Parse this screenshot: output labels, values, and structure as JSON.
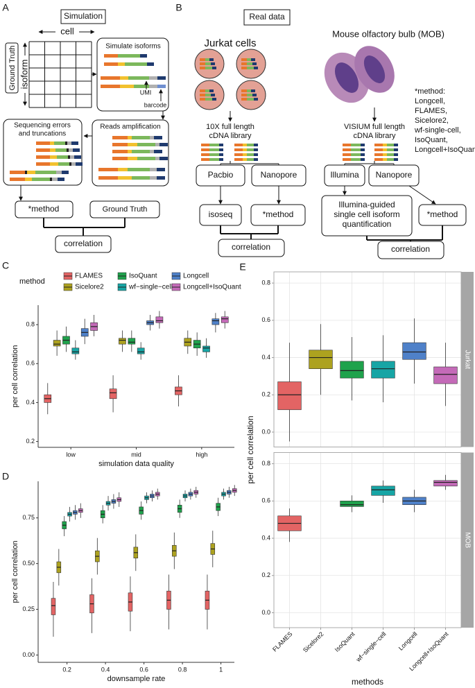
{
  "panel_a": {
    "letter": "A",
    "title": "Simulation",
    "cell": "cell",
    "ground_truth_box": "Ground Truth",
    "isoform": "isoform",
    "simulate": "Simulate isoforms",
    "umi": "UMI",
    "barcode": "barcode",
    "errors": [
      "Sequencing errors",
      "and truncations"
    ],
    "amplification": "Reads amplification",
    "method": "*method",
    "ground_truth": "Ground Truth",
    "correlation": "correlation"
  },
  "panel_b": {
    "letter": "B",
    "title": "Real data",
    "jurkat": "Jurkat cells",
    "mob": "Mouse olfactory bulb (MOB)",
    "library_10x": [
      "10X full length",
      "cDNA library"
    ],
    "library_visium": [
      "VISIUM full length",
      "cDNA library"
    ],
    "pacbio": "Pacbio",
    "nanopore_left": "Nanopore",
    "illumina": "Illumina",
    "nanopore_right": "Nanopore",
    "isoseq": "isoseq",
    "method_left": "*method",
    "illumina_guided": [
      "Illumina-guided",
      "single cell isoform",
      "quantification"
    ],
    "method_right": "*method",
    "correlation_left": "correlation",
    "correlation_right": "correlation",
    "method_note": [
      "*method:",
      "Longcell,",
      "FLAMES,",
      "Sicelore2,",
      "wf-single-cell,",
      "IsoQuant,",
      "Longcell+IsoQuant"
    ]
  },
  "chart_data": [
    {
      "type": "box",
      "panel": "C",
      "legend_title": "method",
      "xlabel": "simulation data quality",
      "ylabel": "per cell correlation",
      "categories": [
        "low",
        "mid",
        "high"
      ],
      "ylim": [
        0.17,
        0.9
      ],
      "yticks": [
        0.2,
        0.4,
        0.6,
        0.8
      ],
      "grid": false,
      "series": [
        {
          "name": "FLAMES",
          "color": "#e36464",
          "values": [
            [
              0.34,
              0.4,
              0.42,
              0.44,
              0.5
            ],
            [
              0.35,
              0.42,
              0.45,
              0.47,
              0.54
            ],
            [
              0.38,
              0.44,
              0.46,
              0.48,
              0.54
            ]
          ]
        },
        {
          "name": "Sicelore2",
          "color": "#ada21f",
          "values": [
            [
              0.64,
              0.69,
              0.7,
              0.72,
              0.77
            ],
            [
              0.66,
              0.7,
              0.72,
              0.73,
              0.77
            ],
            [
              0.65,
              0.69,
              0.71,
              0.73,
              0.77
            ]
          ]
        },
        {
          "name": "IsoQuant",
          "color": "#1fa24c",
          "values": [
            [
              0.66,
              0.7,
              0.72,
              0.74,
              0.79
            ],
            [
              0.66,
              0.7,
              0.71,
              0.73,
              0.77
            ],
            [
              0.64,
              0.68,
              0.7,
              0.72,
              0.76
            ]
          ]
        },
        {
          "name": "wf−single−cell",
          "color": "#17a5a5",
          "values": [
            [
              0.62,
              0.65,
              0.66,
              0.68,
              0.72
            ],
            [
              0.62,
              0.65,
              0.66,
              0.68,
              0.71
            ],
            [
              0.63,
              0.66,
              0.68,
              0.69,
              0.73
            ]
          ]
        },
        {
          "name": "Longcell",
          "color": "#4f81c9",
          "values": [
            [
              0.7,
              0.74,
              0.76,
              0.78,
              0.83
            ],
            [
              0.77,
              0.8,
              0.81,
              0.82,
              0.85
            ],
            [
              0.76,
              0.8,
              0.82,
              0.83,
              0.86
            ]
          ]
        },
        {
          "name": "Longcell+IsoQuant",
          "color": "#c46ab8",
          "values": [
            [
              0.74,
              0.77,
              0.79,
              0.81,
              0.85
            ],
            [
              0.78,
              0.81,
              0.82,
              0.84,
              0.87
            ],
            [
              0.78,
              0.81,
              0.83,
              0.84,
              0.87
            ]
          ]
        }
      ]
    },
    {
      "type": "box",
      "panel": "D",
      "xlabel": "downsample rate",
      "ylabel": "per cell correlation",
      "x": [
        0.2,
        0.4,
        0.6,
        0.8,
        1
      ],
      "xlim": [
        0.05,
        1.07
      ],
      "xticks": [
        0.2,
        0.4,
        0.6,
        0.8,
        1
      ],
      "ylim": [
        -0.04,
        0.95
      ],
      "yticks": [
        {
          "value": 0,
          "label": "0.00"
        },
        {
          "value": 0.25,
          "label": "0.25"
        },
        {
          "value": 0.5,
          "label": "0.50"
        },
        {
          "value": 0.75,
          "label": "0.75"
        }
      ],
      "grid": false,
      "series": [
        {
          "color": "#e36464",
          "values": [
            [
              0.1,
              0.22,
              0.27,
              0.31,
              0.4
            ],
            [
              0.12,
              0.23,
              0.28,
              0.33,
              0.42
            ],
            [
              0.13,
              0.24,
              0.29,
              0.34,
              0.43
            ],
            [
              0.14,
              0.25,
              0.3,
              0.35,
              0.44
            ],
            [
              0.14,
              0.25,
              0.3,
              0.35,
              0.44
            ]
          ]
        },
        {
          "color": "#ada21f",
          "values": [
            [
              0.38,
              0.45,
              0.48,
              0.51,
              0.58
            ],
            [
              0.44,
              0.51,
              0.54,
              0.57,
              0.64
            ],
            [
              0.46,
              0.53,
              0.56,
              0.59,
              0.66
            ],
            [
              0.47,
              0.54,
              0.57,
              0.6,
              0.67
            ],
            [
              0.48,
              0.55,
              0.58,
              0.61,
              0.68
            ]
          ]
        },
        {
          "color": "#1fa24c",
          "values": [
            [
              0.65,
              0.69,
              0.71,
              0.73,
              0.76
            ],
            [
              0.72,
              0.75,
              0.77,
              0.79,
              0.82
            ],
            [
              0.74,
              0.77,
              0.79,
              0.81,
              0.84
            ],
            [
              0.75,
              0.78,
              0.8,
              0.82,
              0.85
            ],
            [
              0.76,
              0.79,
              0.81,
              0.83,
              0.86
            ]
          ]
        },
        {
          "color": "#17a5a5",
          "values": [
            [
              0.73,
              0.76,
              0.77,
              0.78,
              0.81
            ],
            [
              0.79,
              0.82,
              0.83,
              0.84,
              0.87
            ],
            [
              0.83,
              0.85,
              0.86,
              0.87,
              0.89
            ],
            [
              0.84,
              0.86,
              0.87,
              0.88,
              0.9
            ],
            [
              0.85,
              0.87,
              0.88,
              0.89,
              0.91
            ]
          ]
        },
        {
          "color": "#4f81c9",
          "values": [
            [
              0.74,
              0.77,
              0.78,
              0.79,
              0.82
            ],
            [
              0.8,
              0.83,
              0.84,
              0.85,
              0.88
            ],
            [
              0.84,
              0.86,
              0.87,
              0.88,
              0.9
            ],
            [
              0.85,
              0.87,
              0.88,
              0.89,
              0.91
            ],
            [
              0.86,
              0.88,
              0.89,
              0.9,
              0.92
            ]
          ]
        },
        {
          "color": "#c46ab8",
          "values": [
            [
              0.75,
              0.78,
              0.79,
              0.8,
              0.83
            ],
            [
              0.81,
              0.84,
              0.85,
              0.86,
              0.89
            ],
            [
              0.85,
              0.87,
              0.88,
              0.89,
              0.91
            ],
            [
              0.86,
              0.88,
              0.89,
              0.9,
              0.92
            ],
            [
              0.87,
              0.89,
              0.9,
              0.91,
              0.93
            ]
          ]
        }
      ]
    },
    {
      "type": "box_facet",
      "panel": "E",
      "xlabel": "methods",
      "ylabel": "per cell correlation",
      "categories": [
        "FLAMES",
        "Sicelore2",
        "IsoQuant",
        "wf−single−cell",
        "Longcell",
        "Longcell+IsoQuant"
      ],
      "colors": [
        "#e36464",
        "#ada21f",
        "#1fa24c",
        "#17a5a5",
        "#4f81c9",
        "#c46ab8"
      ],
      "ylim": [
        -0.08,
        0.86
      ],
      "yticks": [
        {
          "value": 0,
          "label": "0.0"
        },
        0.2,
        0.4,
        0.6,
        0.8
      ],
      "grid": true,
      "facets": [
        {
          "name": "Jurkat",
          "values": [
            [
              -0.05,
              0.12,
              0.2,
              0.27,
              0.48
            ],
            [
              0.2,
              0.34,
              0.4,
              0.44,
              0.58
            ],
            [
              0.17,
              0.29,
              0.33,
              0.38,
              0.51
            ],
            [
              0.16,
              0.29,
              0.34,
              0.38,
              0.52
            ],
            [
              0.26,
              0.39,
              0.43,
              0.48,
              0.61
            ],
            [
              0.14,
              0.26,
              0.31,
              0.35,
              0.48
            ]
          ]
        },
        {
          "name": "MOB",
          "values": [
            [
              0.38,
              0.44,
              0.48,
              0.52,
              0.56
            ],
            null,
            [
              0.54,
              0.57,
              0.58,
              0.6,
              0.63
            ],
            [
              0.59,
              0.63,
              0.66,
              0.68,
              0.71
            ],
            [
              0.54,
              0.58,
              0.6,
              0.62,
              0.66
            ],
            [
              0.66,
              0.68,
              0.7,
              0.71,
              0.74
            ]
          ]
        }
      ]
    }
  ]
}
